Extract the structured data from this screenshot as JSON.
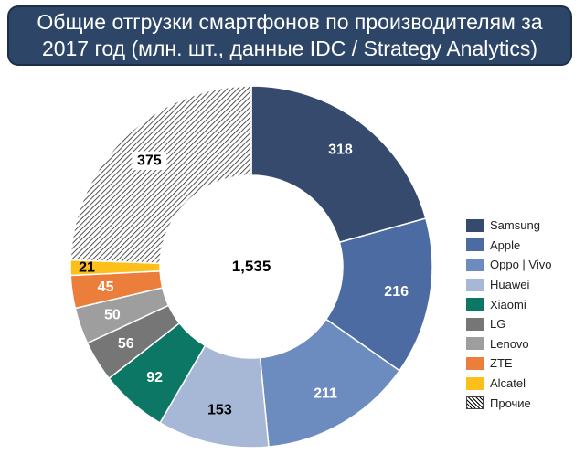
{
  "chart_data": {
    "type": "pie",
    "title": "Общие отгрузки смартфонов по производителям за 2017 год (млн. шт., данные IDC / Strategy Analytics)",
    "center_label": "1,535",
    "legend_position": "right",
    "slices": [
      {
        "name": "Samsung",
        "value": 318,
        "color": "#364a6e"
      },
      {
        "name": "Apple",
        "value": 216,
        "color": "#4c6ba3"
      },
      {
        "name": "Oppo | Vivo",
        "value": 211,
        "color": "#6c8cbf"
      },
      {
        "name": "Huawei",
        "value": 153,
        "color": "#a7b8d6"
      },
      {
        "name": "Xiaomi",
        "value": 92,
        "color": "#0c7765"
      },
      {
        "name": "LG",
        "value": 56,
        "color": "#767676"
      },
      {
        "name": "Lenovo",
        "value": 50,
        "color": "#9e9e9e"
      },
      {
        "name": "ZTE",
        "value": 45,
        "color": "#ec7e3b"
      },
      {
        "name": "Alcatel",
        "value": 21,
        "color": "#fdbf1a"
      },
      {
        "name": "Прочие",
        "value": 375,
        "color": "hatch"
      }
    ]
  }
}
